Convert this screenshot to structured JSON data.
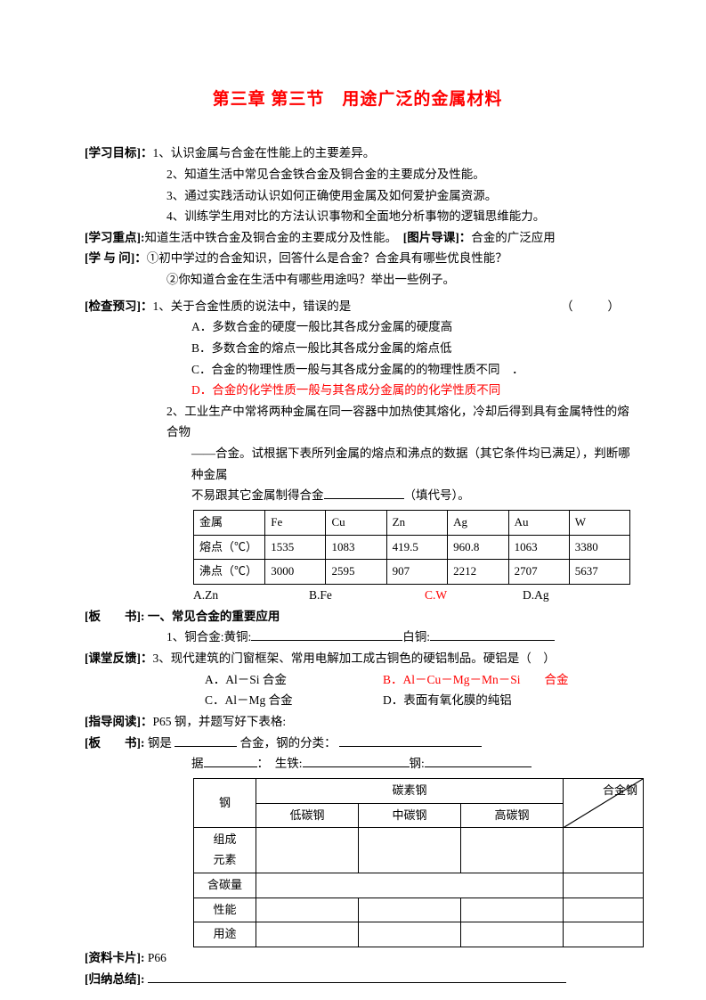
{
  "title": "第三章 第三节　用途广泛的金属材料",
  "objectives": {
    "label": "[学习目标]：",
    "items": [
      "1、认识金属与合金在性能上的主要差异。",
      "2、知道生活中常见合金铁合金及铜合金的主要成分及性能。",
      "3、通过实践活动认识如何正确使用金属及如何爱护金属资源。",
      "4、训练学生用对比的方法认识事物和全面地分析事物的逻辑思维能力。"
    ]
  },
  "focus": {
    "label": "[学习重点]:",
    "text": "知道生活中铁合金及铜合金的主要成分及性能。",
    "guide_label": "[图片导课]：",
    "guide_text": "合金的广泛应用"
  },
  "qa": {
    "label": "[学 与 问]：",
    "q1": "①初中学过的合金知识，回答什么是合金？合金具有哪些优良性能？",
    "q2": "②你知道合金在生活中有哪些用途吗？举出一些例子。"
  },
  "preview": {
    "label": "[检查预习]：",
    "q1": {
      "stem": "1、关于合金性质的说法中，错误的是",
      "paren": "（　　）",
      "a": "A．多数合金的硬度一般比其各成分金属的硬度高",
      "b": "B．多数合金的熔点一般比其各成分金属的熔点低",
      "c": "C．合金的物理性质一般与其各成分金属的的物理性质不同　．",
      "d": "D．合金的化学性质一般与其各成分金属的的化学性质不同"
    },
    "q2": {
      "stem1": "2、工业生产中常将两种金属在同一容器中加热使其熔化，冷却后得到具有金属特性的熔合物",
      "stem2": "——合金。试根据下表所列金属的熔点和沸点的数据（其它条件均已满足），判断哪种金属",
      "stem3_pre": "不易跟其它金属制得合金",
      "stem3_post": "（填代号）。"
    },
    "table": {
      "headers": [
        "金属",
        "Fe",
        "Cu",
        "Zn",
        "Ag",
        "Au",
        "W"
      ],
      "row1_label": "熔点（℃）",
      "row1": [
        "1535",
        "1083",
        "419.5",
        "960.8",
        "1063",
        "3380"
      ],
      "row2_label": "沸点（℃）",
      "row2": [
        "3000",
        "2595",
        "907",
        "2212",
        "2707",
        "5637"
      ]
    },
    "opts": {
      "a": "A.Zn",
      "b": "B.Fe",
      "c": "C.W",
      "d": "D.Ag"
    }
  },
  "board1": {
    "label": "[板　　书]:",
    "heading": "一、常见合金的重要应用",
    "copper_line_pre": "1、铜合金:黄铜:",
    "copper_line_mid": "白铜:"
  },
  "feedback": {
    "label": "[课堂反馈]：",
    "stem": "3、现代建筑的门窗框架、常用电解加工成古铜色的硬铝制品。硬铝是（　）",
    "a": "A．Al－Si 合金",
    "b": "B．Al－Cu－Mg－Mn－Si　　合金",
    "c": "C．Al－Mg 合金",
    "d": "D．表面有氧化膜的纯铝"
  },
  "reading": {
    "label": "[指导阅读]：",
    "text": "P65 钢，并题写好下表格:"
  },
  "board2": {
    "label": "[板　　书]:",
    "line1_pre": "钢是",
    "line1_mid": "合金，钢的分类：",
    "line2_pre": "据",
    "line2_mid": "：　生铁:",
    "line2_end": "钢:"
  },
  "steel_table": {
    "col0": "钢",
    "col_group": "碳素钢",
    "col1": "低碳钢",
    "col2": "中碳钢",
    "col3": "高碳钢",
    "col4": "合金钢",
    "rows": [
      "组成\n元素",
      "含碳量",
      "性能",
      "用途"
    ]
  },
  "card": {
    "label": "[资料卡片]:",
    "text": "P66"
  },
  "summary": {
    "label": "[归纳总结]:"
  }
}
